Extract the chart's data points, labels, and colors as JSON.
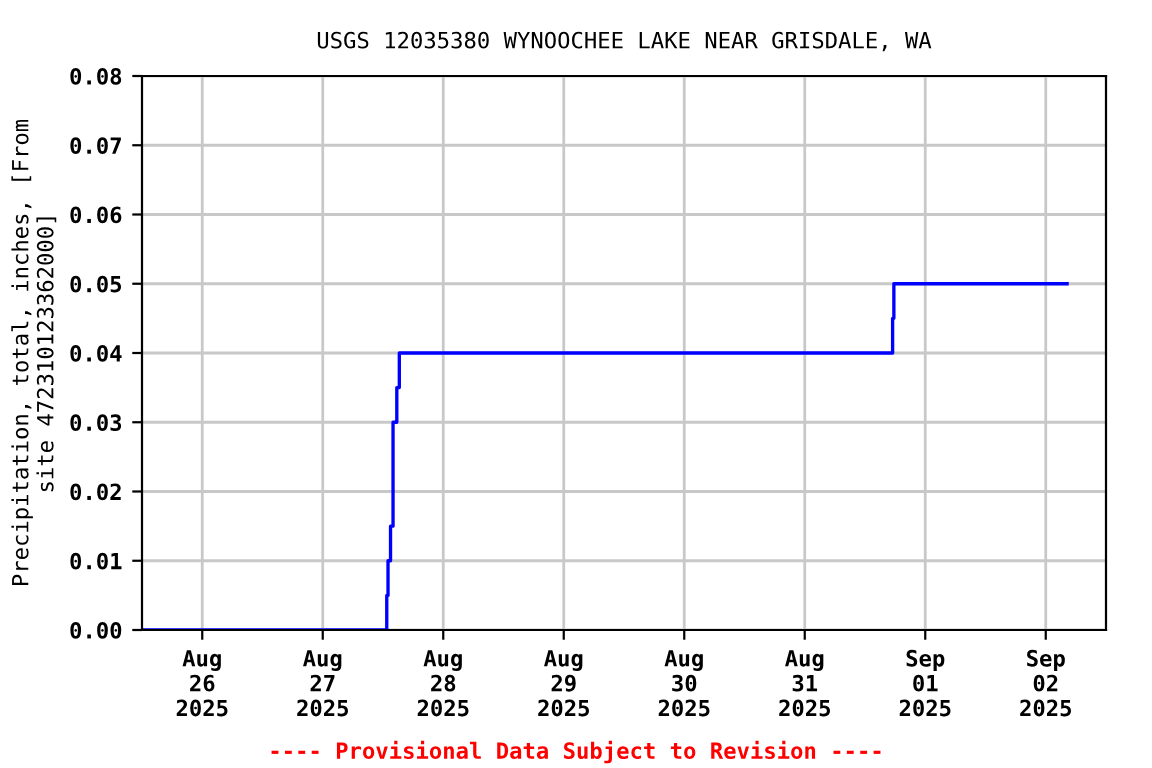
{
  "chart_data": {
    "type": "step",
    "title": "USGS 12035380 WYNOOCHEE LAKE NEAR GRISDALE, WA",
    "ylabel": "Precipitation, total, inches, [From\nsite 472310123362000]",
    "annotations": [
      "---- Provisional Data Subject to Revision ----"
    ],
    "x": [
      "2025-08-25T12:00",
      "2025-08-27T12:45",
      "2025-08-27T13:00",
      "2025-08-27T13:30",
      "2025-08-27T14:00",
      "2025-08-27T14:45",
      "2025-08-27T15:15",
      "2025-08-31T17:30",
      "2025-08-31T17:45",
      "2025-09-02T04:15"
    ],
    "series": [
      {
        "color": "#0000ff",
        "values": [
          0,
          0.005,
          0.01,
          0.015,
          0.03,
          0.035,
          0.04,
          0.045,
          0.05,
          0.05
        ]
      }
    ],
    "xlim": [
      "2025-08-25T12:00",
      "2025-09-02T12:00"
    ],
    "xticks": [
      {
        "value": "2025-08-26",
        "label": "Aug\n26\n2025"
      },
      {
        "value": "2025-08-27",
        "label": "Aug\n27\n2025"
      },
      {
        "value": "2025-08-28",
        "label": "Aug\n28\n2025"
      },
      {
        "value": "2025-08-29",
        "label": "Aug\n29\n2025"
      },
      {
        "value": "2025-08-30",
        "label": "Aug\n30\n2025"
      },
      {
        "value": "2025-08-31",
        "label": "Aug\n31\n2025"
      },
      {
        "value": "2025-09-01",
        "label": "Sep\n01\n2025"
      },
      {
        "value": "2025-09-02",
        "label": "Sep\n02\n2025"
      }
    ],
    "ylim": [
      0,
      0.08
    ],
    "yticks": [
      {
        "value": 0,
        "label": "0.00"
      },
      {
        "value": 0.01,
        "label": "0.01"
      },
      {
        "value": 0.02,
        "label": "0.02"
      },
      {
        "value": 0.03,
        "label": "0.03"
      },
      {
        "value": 0.04,
        "label": "0.04"
      },
      {
        "value": 0.05,
        "label": "0.05"
      },
      {
        "value": 0.06,
        "label": "0.06"
      },
      {
        "value": 0.07,
        "label": "0.07"
      },
      {
        "value": 0.08,
        "label": "0.08"
      }
    ],
    "grid": true,
    "line_style": "solid",
    "marker": "none"
  }
}
